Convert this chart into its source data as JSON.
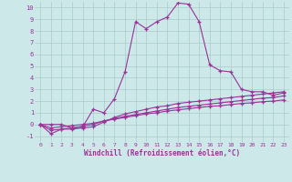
{
  "xlabel": "Windchill (Refroidissement éolien,°C)",
  "background_color": "#cce8e8",
  "grid_color": "#aacccc",
  "line_color": "#993399",
  "xlim": [
    -0.5,
    23.5
  ],
  "ylim": [
    -1.5,
    10.5
  ],
  "xticks": [
    0,
    1,
    2,
    3,
    4,
    5,
    6,
    7,
    8,
    9,
    10,
    11,
    12,
    13,
    14,
    15,
    16,
    17,
    18,
    19,
    20,
    21,
    22,
    23
  ],
  "yticks": [
    -1,
    0,
    1,
    2,
    3,
    4,
    5,
    6,
    7,
    8,
    9,
    10
  ],
  "series": [
    [
      0,
      0,
      0,
      -0.3,
      -0.2,
      1.3,
      1.0,
      2.2,
      4.5,
      8.8,
      8.2,
      8.8,
      9.2,
      10.4,
      10.3,
      8.8,
      5.1,
      4.6,
      4.5,
      3.0,
      2.8,
      2.8,
      2.5,
      2.7
    ],
    [
      0,
      -0.8,
      -0.4,
      -0.4,
      -0.3,
      -0.2,
      0.2,
      0.6,
      0.9,
      1.1,
      1.3,
      1.5,
      1.6,
      1.8,
      1.9,
      2.0,
      2.1,
      2.2,
      2.3,
      2.4,
      2.5,
      2.6,
      2.7,
      2.8
    ],
    [
      0,
      -0.5,
      -0.4,
      -0.3,
      -0.15,
      0.0,
      0.3,
      0.5,
      0.7,
      0.85,
      1.0,
      1.15,
      1.3,
      1.45,
      1.55,
      1.65,
      1.75,
      1.85,
      1.95,
      2.05,
      2.15,
      2.25,
      2.3,
      2.45
    ],
    [
      0,
      -0.3,
      -0.2,
      -0.1,
      0.0,
      0.1,
      0.3,
      0.45,
      0.6,
      0.75,
      0.9,
      1.0,
      1.15,
      1.25,
      1.35,
      1.45,
      1.55,
      1.6,
      1.7,
      1.8,
      1.85,
      1.95,
      2.0,
      2.1
    ]
  ]
}
